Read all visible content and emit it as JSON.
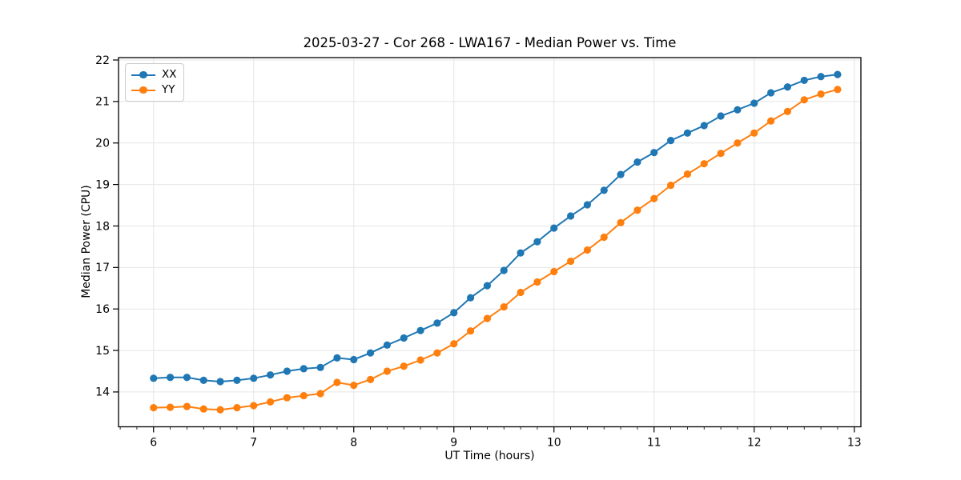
{
  "chart_data": {
    "type": "line",
    "title": "2025-03-27 - Cor 268 - LWA167 - Median Power vs. Time",
    "xlabel": "UT Time (hours)",
    "ylabel": "Median Power (CPU)",
    "xlim": [
      5.65,
      13.066
    ],
    "ylim": [
      13.16,
      22.058
    ],
    "x_ticks": [
      6,
      7,
      8,
      9,
      10,
      11,
      12,
      13
    ],
    "x_tick_labels": [
      "6",
      "7",
      "8",
      "9",
      "10",
      "11",
      "12",
      "13"
    ],
    "x_minor_tick_step": 0.16667,
    "y_ticks": [
      14,
      15,
      16,
      17,
      18,
      19,
      20,
      21,
      22
    ],
    "y_tick_labels": [
      "14",
      "15",
      "16",
      "17",
      "18",
      "19",
      "20",
      "21",
      "22"
    ],
    "grid": true,
    "grid_color": "#e5e5e5",
    "spine_color": "#000000",
    "legend_position": "upper-left",
    "marker": "circle",
    "x": [
      6.0,
      6.1667,
      6.3333,
      6.5,
      6.6667,
      6.8333,
      7.0,
      7.1667,
      7.3333,
      7.5,
      7.6667,
      7.8333,
      8.0,
      8.1667,
      8.3333,
      8.5,
      8.6667,
      8.8333,
      9.0,
      9.1667,
      9.3333,
      9.5,
      9.6667,
      9.8333,
      10.0,
      10.1667,
      10.3333,
      10.5,
      10.6667,
      10.8333,
      11.0,
      11.1667,
      11.3333,
      11.5,
      11.6667,
      11.8333,
      12.0,
      12.1667,
      12.3333,
      12.5,
      12.6667,
      12.8333
    ],
    "series": [
      {
        "name": "XX",
        "color": "#1f77b4",
        "values": [
          14.33,
          14.35,
          14.35,
          14.28,
          14.25,
          14.28,
          14.33,
          14.41,
          14.5,
          14.56,
          14.59,
          14.82,
          14.78,
          14.94,
          15.13,
          15.3,
          15.48,
          15.66,
          15.91,
          16.27,
          16.56,
          16.93,
          17.35,
          17.62,
          17.95,
          18.24,
          18.51,
          18.86,
          19.24,
          19.54,
          19.77,
          20.06,
          20.24,
          20.42,
          20.65,
          20.8,
          20.96,
          21.21,
          21.35,
          21.51,
          21.6,
          21.65
        ]
      },
      {
        "name": "YY",
        "color": "#ff7f0e",
        "values": [
          13.62,
          13.63,
          13.65,
          13.59,
          13.57,
          13.62,
          13.67,
          13.76,
          13.86,
          13.91,
          13.96,
          14.23,
          14.16,
          14.3,
          14.5,
          14.62,
          14.77,
          14.94,
          15.16,
          15.47,
          15.77,
          16.05,
          16.4,
          16.65,
          16.9,
          17.15,
          17.42,
          17.73,
          18.08,
          18.38,
          18.66,
          18.98,
          19.25,
          19.5,
          19.75,
          20.0,
          20.24,
          20.53,
          20.76,
          21.04,
          21.18,
          21.29
        ]
      }
    ]
  }
}
